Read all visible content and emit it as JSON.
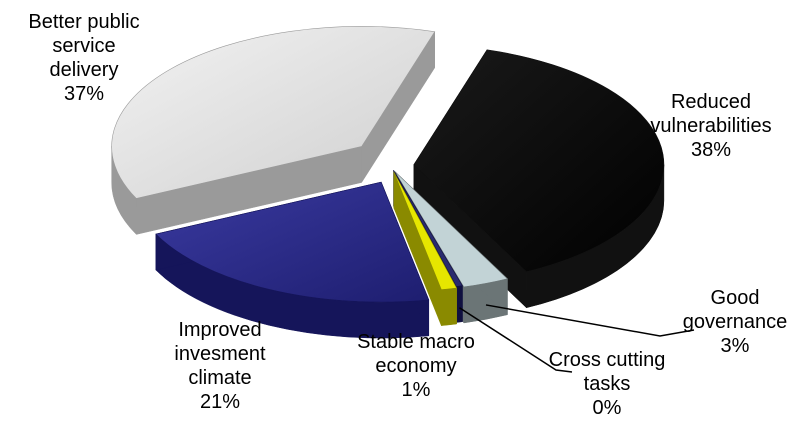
{
  "chart_data": {
    "type": "pie",
    "style": "3d-exploded",
    "title": "",
    "legend": "none",
    "slices": [
      {
        "name": "Reduced vulnerabilities",
        "label_lines": [
          "Reduced",
          "vulnerabilities"
        ],
        "value_label": "38%",
        "value": 38,
        "top_color": "#000000",
        "side_color": "#111111"
      },
      {
        "name": "Good governance",
        "label_lines": [
          "Good",
          "governance"
        ],
        "value_label": "3%",
        "value": 3,
        "top_color": "#c2d3d6",
        "side_color": "#6b7576"
      },
      {
        "name": "Cross cutting tasks",
        "label_lines": [
          "Cross cutting",
          "tasks"
        ],
        "value_label": "0%",
        "value": 0.4,
        "top_color": "#2a2a6e",
        "side_color": "#101040"
      },
      {
        "name": "Stable macro economy",
        "label_lines": [
          "Stable macro",
          "economy"
        ],
        "value_label": "1%",
        "value": 1,
        "top_color": "#e6e600",
        "side_color": "#8a8a00"
      },
      {
        "name": "Improved invesment climate",
        "label_lines": [
          "Improved",
          "invesment",
          "climate"
        ],
        "value_label": "21%",
        "value": 21,
        "top_color": "#2b2b8c",
        "side_color": "#15155a"
      },
      {
        "name": "Better public service delivery",
        "label_lines": [
          "Better public",
          "service",
          "delivery"
        ],
        "value_label": "37%",
        "value": 37,
        "top_color": "#dcdcdc",
        "side_color": "#9a9a9a"
      }
    ]
  }
}
